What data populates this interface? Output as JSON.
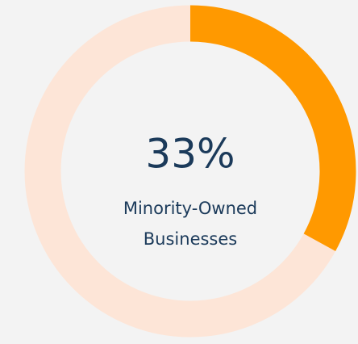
{
  "chart_data": {
    "type": "donut",
    "value": 33,
    "value_label": "33%",
    "label_lines": [
      "Minority-Owned",
      "Businesses"
    ],
    "ylim": [
      0,
      100
    ],
    "color": "#ff9900",
    "track_color": "#fde5d7"
  }
}
